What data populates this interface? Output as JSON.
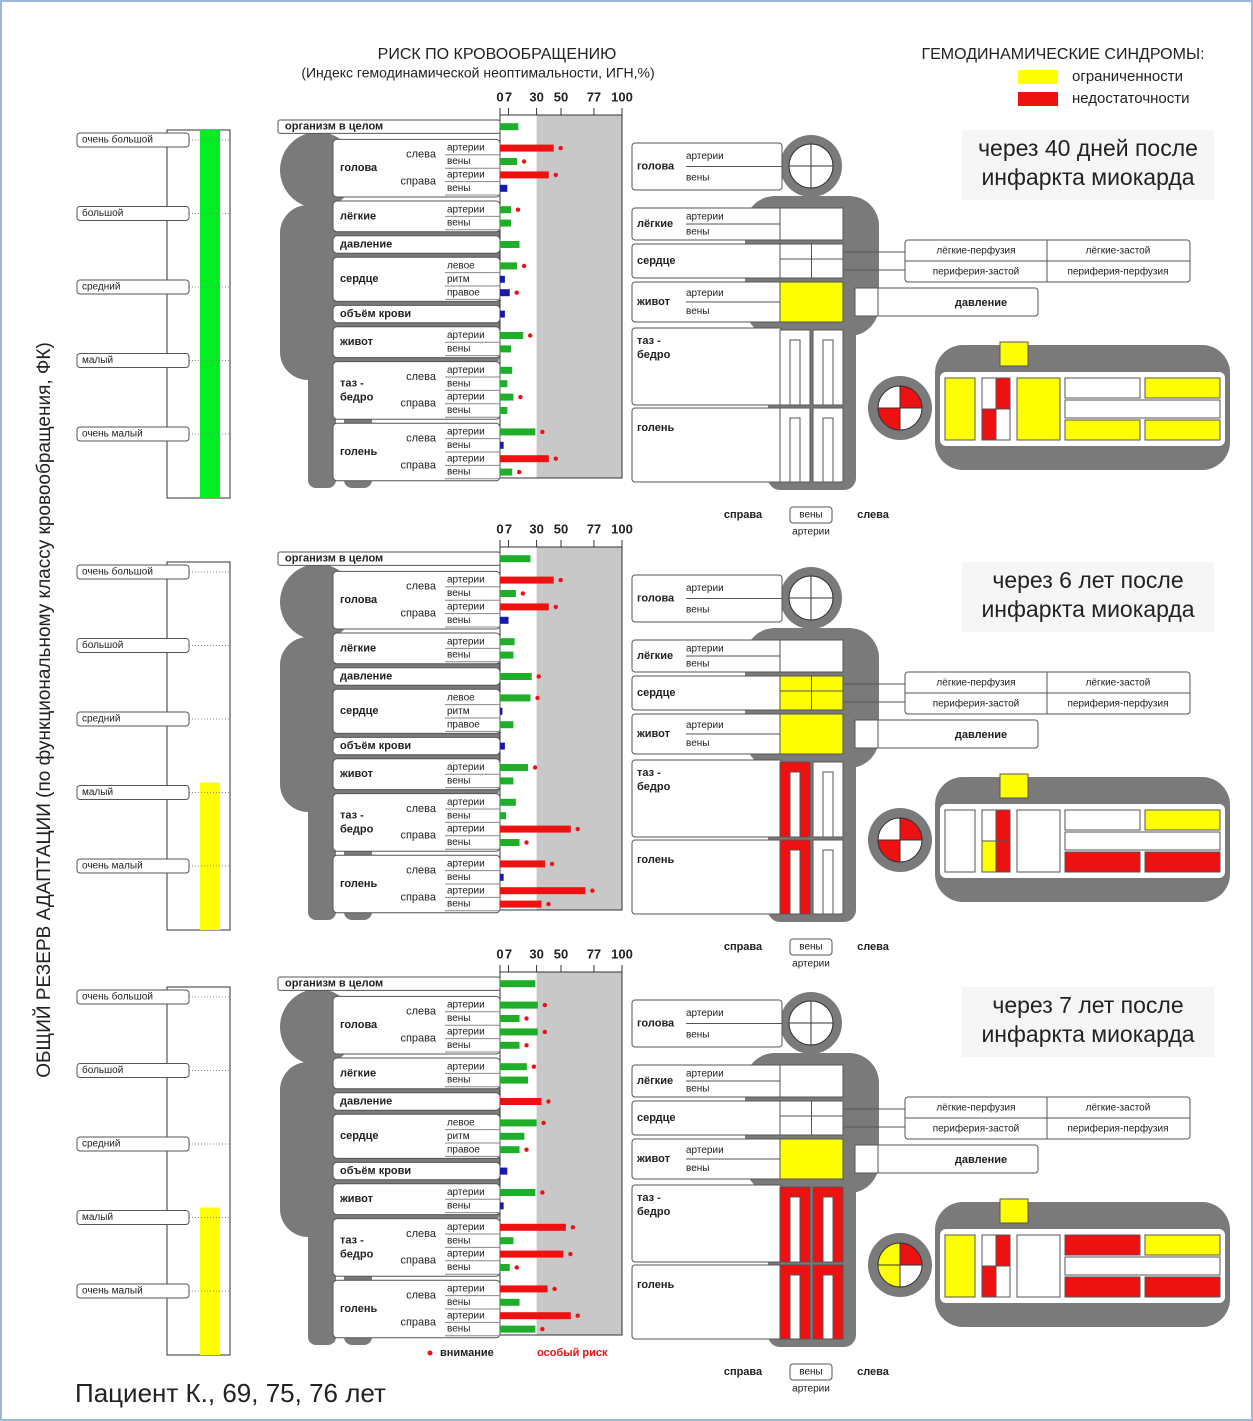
{
  "header": {
    "title": "РИСК ПО КРОВООБРАЩЕНИЮ",
    "subtitle": "(Индекс гемодинамической неоптимальности, ИГН,%)"
  },
  "legend": {
    "title": "ГЕМОДИНАМИЧЕСКИЕ СИНДРОМЫ:",
    "items": [
      {
        "label": "ограниченности",
        "color": "#ffff00"
      },
      {
        "label": "недостаточности",
        "color": "#ee1111"
      }
    ]
  },
  "y_axis_label": "ОБЩИЙ РЕЗЕРВ АДАПТАЦИИ (по функциональному классу кровообращения, ФК)",
  "reserve_levels": [
    "очень большой",
    "большой",
    "средний",
    "малый",
    "очень малый"
  ],
  "groups": [
    {
      "label": "организм в целом",
      "items": []
    },
    {
      "label": "голова",
      "sides": [
        "слева",
        "справа"
      ],
      "items": [
        "артерии",
        "вены"
      ]
    },
    {
      "label": "лёгкие",
      "items": [
        "артерии",
        "вены"
      ]
    },
    {
      "label": "давление",
      "items": []
    },
    {
      "label": "сердце",
      "items": [
        "левое",
        "ритм",
        "правое"
      ]
    },
    {
      "label": "объём крови",
      "items": []
    },
    {
      "label": "живот",
      "items": [
        "артерии",
        "вены"
      ]
    },
    {
      "label": [
        "таз -",
        "бедро"
      ],
      "sides": [
        "слева",
        "справа"
      ],
      "items": [
        "артерии",
        "вены"
      ]
    },
    {
      "label": "голень",
      "sides": [
        "слева",
        "справа"
      ],
      "items": [
        "артерии",
        "вены"
      ]
    }
  ],
  "syndrome_labels": [
    "лёгкие-перфузия",
    "лёгкие-застой",
    "периферия-застой",
    "периферия-перфузия"
  ],
  "bar_legend": {
    "attention": "внимание",
    "special_risk": "особый риск"
  },
  "footer": "Пациент К., 69, 75, 76 лет",
  "chart_data": [
    {
      "type": "bar",
      "title": [
        "через 40 дней после",
        "инфаркта миокарда"
      ],
      "xlim": [
        0,
        100
      ],
      "xticks": [
        0,
        7,
        30,
        50,
        77,
        100
      ],
      "special_risk_from": 30,
      "reserve_level": 0,
      "reserve_color": "#00ee22",
      "values": [
        15,
        44,
        14,
        40,
        6,
        9,
        9,
        16,
        14,
        4,
        8,
        4,
        19,
        9,
        10,
        6,
        11,
        6,
        29,
        3,
        40,
        10
      ],
      "colors": [
        "#1fae2a",
        "#ee1111",
        "#1fae2a",
        "#ee1111",
        "#1a1aa8",
        "#1fae2a",
        "#1fae2a",
        "#1fae2a",
        "#1fae2a",
        "#1a1aa8",
        "#1a1aa8",
        "#1a1aa8",
        "#1fae2a",
        "#1fae2a",
        "#1fae2a",
        "#1fae2a",
        "#1fae2a",
        "#1fae2a",
        "#1fae2a",
        "#1a1aa8",
        "#ee1111",
        "#1fae2a"
      ],
      "attention": [
        false,
        true,
        true,
        true,
        false,
        true,
        false,
        false,
        true,
        false,
        true,
        false,
        true,
        false,
        false,
        false,
        true,
        false,
        true,
        false,
        true,
        true
      ],
      "body": {
        "lungs": "#ffffff",
        "heart": [
          "#ffffff",
          "#ffffff"
        ],
        "abdomen": "#ffff00",
        "pelvis": [
          "#ffffff",
          "#ffffff"
        ],
        "shin": [
          "#ffffff",
          "#ffffff"
        ]
      },
      "figure": {
        "pie": [
          "#ffffff",
          "#ee1111",
          "#ffffff",
          "#ee1111"
        ],
        "top": "#ffff00",
        "col1": "#ffff00",
        "col2": [
          "#ffffff",
          "#ee1111",
          "#ee1111",
          "#ffffff"
        ],
        "col3": "#ffff00",
        "strips": [
          "#ffffff",
          "#ffff00",
          "#ffff00",
          "#ffff00"
        ]
      }
    },
    {
      "type": "bar",
      "title": [
        "через 6 лет после",
        "инфаркта миокарда"
      ],
      "xlim": [
        0,
        100
      ],
      "xticks": [
        0,
        7,
        30,
        50,
        77,
        100
      ],
      "special_risk_from": 30,
      "reserve_level": 3,
      "reserve_color": "#ffff00",
      "values": [
        25,
        44,
        13,
        40,
        7,
        12,
        11,
        26,
        25,
        2,
        11,
        4,
        23,
        11,
        13,
        5,
        58,
        16,
        37,
        3,
        70,
        34
      ],
      "colors": [
        "#1fae2a",
        "#ee1111",
        "#1fae2a",
        "#ee1111",
        "#1a1aa8",
        "#1fae2a",
        "#1fae2a",
        "#1fae2a",
        "#1fae2a",
        "#1a1aa8",
        "#1fae2a",
        "#1a1aa8",
        "#1fae2a",
        "#1fae2a",
        "#1fae2a",
        "#1fae2a",
        "#ee1111",
        "#1fae2a",
        "#ee1111",
        "#1a1aa8",
        "#ee1111",
        "#ee1111"
      ],
      "attention": [
        false,
        true,
        true,
        true,
        false,
        false,
        false,
        true,
        true,
        false,
        false,
        false,
        true,
        false,
        false,
        false,
        true,
        true,
        true,
        false,
        true,
        true
      ],
      "body": {
        "lungs": "#ffffff",
        "heart": [
          "#ffff00",
          "#ffff00"
        ],
        "abdomen": "#ffff00",
        "pelvis": [
          "#ee1111",
          "#ffffff"
        ],
        "shin": [
          "#ee1111",
          "#ffffff"
        ]
      },
      "figure": {
        "pie": [
          "#ffffff",
          "#ee1111",
          "#ffffff",
          "#ee1111"
        ],
        "top": "#ffff00",
        "col1": "#ffffff",
        "col2": [
          "#ffffff",
          "#ee1111",
          "#ffff00",
          "#ee1111"
        ],
        "col3": "#ffffff",
        "strips": [
          "#ffffff",
          "#ffff00",
          "#ee1111",
          "#ee1111"
        ]
      }
    },
    {
      "type": "bar",
      "title": [
        "через 7 лет после",
        "инфаркта миокарда"
      ],
      "xlim": [
        0,
        100
      ],
      "xticks": [
        0,
        7,
        30,
        50,
        77,
        100
      ],
      "special_risk_from": 30,
      "reserve_level": 3,
      "reserve_color": "#ffff00",
      "values": [
        29,
        31,
        16,
        31,
        16,
        22,
        23,
        34,
        30,
        20,
        16,
        6,
        29,
        3,
        54,
        11,
        52,
        8,
        39,
        16,
        58,
        29
      ],
      "colors": [
        "#1fae2a",
        "#1fae2a",
        "#1fae2a",
        "#1fae2a",
        "#1fae2a",
        "#1fae2a",
        "#1fae2a",
        "#ee1111",
        "#1fae2a",
        "#1fae2a",
        "#1fae2a",
        "#1a1aa8",
        "#1fae2a",
        "#1a1aa8",
        "#ee1111",
        "#1fae2a",
        "#ee1111",
        "#1fae2a",
        "#ee1111",
        "#1fae2a",
        "#ee1111",
        "#1fae2a"
      ],
      "attention": [
        false,
        true,
        true,
        true,
        true,
        true,
        false,
        true,
        true,
        false,
        true,
        false,
        true,
        false,
        true,
        false,
        true,
        true,
        true,
        false,
        true,
        true
      ],
      "body": {
        "lungs": "#ffffff",
        "heart": [
          "#ffffff",
          "#ffffff"
        ],
        "abdomen": "#ffff00",
        "pelvis": [
          "#ee1111",
          "#ee1111"
        ],
        "shin": [
          "#ee1111",
          "#ee1111"
        ]
      },
      "figure": {
        "pie": [
          "#ffff00",
          "#ee1111",
          "#ffffff",
          "#ffff00"
        ],
        "top": "#ffff00",
        "col1": "#ffff00",
        "col2": [
          "#ffffff",
          "#ee1111",
          "#ee1111",
          "#ffffff"
        ],
        "col3": "#ffffff",
        "strips": [
          "#ee1111",
          "#ffff00",
          "#ee1111",
          "#ee1111"
        ]
      }
    }
  ]
}
